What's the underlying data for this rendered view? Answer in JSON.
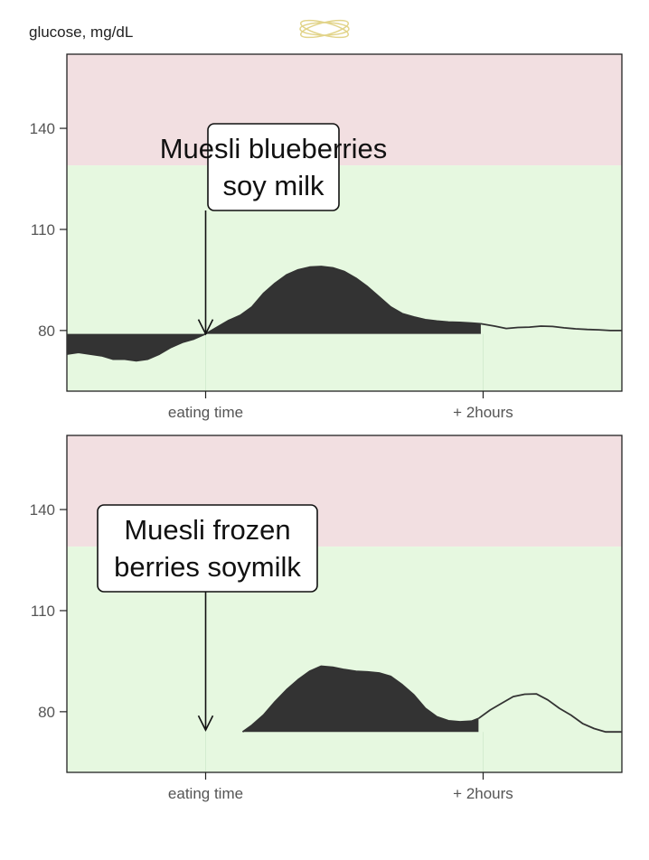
{
  "header": {
    "ylabel": "glucose, mg/dL",
    "logo_icon": "orbit-logo-icon"
  },
  "colors": {
    "high_band": "#f2dfe1",
    "normal_band": "#e6f8e0",
    "curve": "#333333",
    "area": "#333333",
    "axis": "#222222",
    "tick_text": "#555555"
  },
  "chart_data": [
    {
      "type": "area",
      "annotation": [
        "Muesli blueberries",
        "soy milk"
      ],
      "ylabel": "glucose, mg/dL",
      "yticks": [
        80,
        110,
        140
      ],
      "ylim": [
        62,
        162
      ],
      "high_threshold": 129,
      "xticks": [
        {
          "x": 0,
          "label": "eating time"
        },
        {
          "x": 120,
          "label": "+ 2hours"
        }
      ],
      "xlim": [
        -60,
        180
      ],
      "event_x": 0,
      "area_range": [
        0,
        119
      ],
      "area_baseline": 79,
      "series": [
        {
          "x": [
            -60,
            -55,
            -50,
            -45,
            -40,
            -35,
            -30,
            -25,
            -20,
            -15,
            -10,
            -5,
            0,
            5,
            10,
            15,
            20,
            25,
            30,
            35,
            40,
            45,
            50,
            55,
            60,
            65,
            70,
            75,
            80,
            85,
            90,
            95,
            100,
            105,
            110,
            115,
            119
          ],
          "y": [
            73,
            73.5,
            73,
            72.5,
            71.5,
            71.5,
            71,
            71.5,
            73,
            75,
            76.5,
            77.5,
            79,
            81,
            83,
            84.5,
            87,
            91,
            94,
            96.5,
            98,
            98.8,
            99,
            98.6,
            97.5,
            95.5,
            93,
            90,
            87,
            85,
            84,
            83.2,
            82.8,
            82.5,
            82.4,
            82.2,
            82
          ]
        },
        {
          "x": [
            119,
            125,
            130,
            135,
            140,
            145,
            150,
            155,
            160,
            165,
            170,
            175,
            180
          ],
          "y": [
            82,
            81.3,
            80.6,
            80.9,
            81,
            81.3,
            81.2,
            80.8,
            80.5,
            80.3,
            80.2,
            80,
            80
          ]
        }
      ]
    },
    {
      "type": "area",
      "annotation": [
        "Muesli frozen",
        "berries soymilk"
      ],
      "ylabel": "glucose, mg/dL",
      "yticks": [
        80,
        110,
        140
      ],
      "ylim": [
        62,
        162
      ],
      "high_threshold": 129,
      "xticks": [
        {
          "x": 0,
          "label": "eating time"
        },
        {
          "x": 120,
          "label": "+ 2hours"
        }
      ],
      "xlim": [
        -60,
        180
      ],
      "event_x": 0,
      "area_range": [
        16,
        118
      ],
      "area_baseline": 74,
      "series": [
        {
          "x": [
            16,
            20,
            25,
            30,
            35,
            40,
            45,
            50,
            55,
            60,
            65,
            70,
            75,
            80,
            85,
            90,
            95,
            100,
            105,
            110,
            115,
            118
          ],
          "y": [
            74,
            76,
            79,
            83,
            86.5,
            89.5,
            92,
            93.5,
            93.2,
            92.5,
            92,
            91.8,
            91.5,
            90.5,
            88,
            85,
            81,
            78.5,
            77.3,
            77,
            77.2,
            78
          ]
        },
        {
          "x": [
            118,
            123,
            128,
            133,
            138,
            143,
            148,
            153,
            158,
            163,
            168,
            173,
            178,
            180
          ],
          "y": [
            78,
            80.5,
            82.5,
            84.5,
            85.2,
            85.3,
            83.5,
            81,
            79,
            76.5,
            75,
            74,
            74,
            74
          ]
        }
      ]
    }
  ]
}
